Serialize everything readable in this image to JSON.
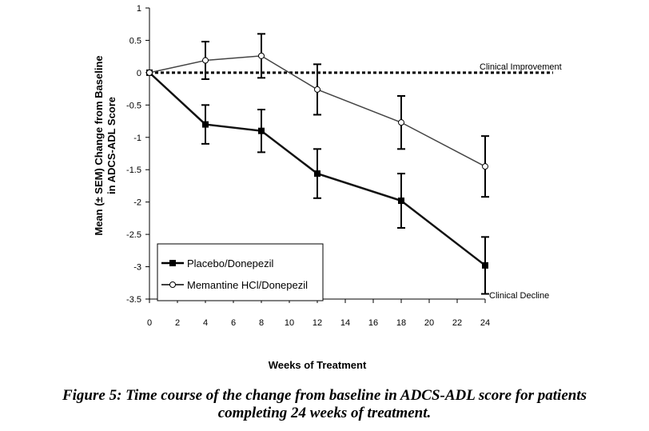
{
  "chart_data": {
    "type": "line",
    "xlabel": "Weeks of Treatment",
    "ylabel_line1": "Mean (± SEM) Change from Baseline",
    "ylabel_line2": "in ADCS-ADL Score",
    "xlim": [
      0,
      24
    ],
    "ylim": [
      -3.5,
      1
    ],
    "x_ticks": [
      0,
      2,
      4,
      6,
      8,
      10,
      12,
      14,
      16,
      18,
      20,
      22,
      24
    ],
    "y_ticks": [
      1,
      0.5,
      0,
      -0.5,
      -1,
      -1.5,
      -2,
      -2.5,
      -3,
      -3.5
    ],
    "x_tick_labels": [
      "0",
      "2",
      "4",
      "6",
      "8",
      "10",
      "12",
      "14",
      "16",
      "18",
      "20",
      "22",
      "24"
    ],
    "y_tick_labels": [
      "1",
      "0.5",
      "0",
      "-0.5",
      "-1",
      "-1.5",
      "-2",
      "-2.5",
      "-3",
      "-3.5"
    ],
    "grid": false,
    "legend_position": "bottom-left",
    "reference_line": {
      "y": 0,
      "style": "dotted",
      "label": "Clinical Improvement"
    },
    "annotations": [
      {
        "text": "Clinical Improvement",
        "x": 24,
        "y": 0.05
      },
      {
        "text": "Clinical Decline",
        "x": 24,
        "y": -3.45
      }
    ],
    "series": [
      {
        "name": "Placebo/Donepezil",
        "marker": "filled-square",
        "x": [
          0,
          4,
          8,
          12,
          18,
          24
        ],
        "y": [
          0,
          -0.8,
          -0.9,
          -1.56,
          -1.98,
          -2.98
        ],
        "err": [
          0,
          0.3,
          0.33,
          0.38,
          0.42,
          0.44
        ]
      },
      {
        "name": "Memantine HCl/Donepezil",
        "marker": "open-circle",
        "x": [
          0,
          4,
          8,
          12,
          18,
          24
        ],
        "y": [
          0,
          0.19,
          0.26,
          -0.26,
          -0.77,
          -1.45
        ],
        "err": [
          0,
          0.29,
          0.34,
          0.39,
          0.41,
          0.47
        ]
      }
    ]
  },
  "caption": {
    "line1": "Figure 5: Time course of the change from baseline in ADCS-ADL score for patients",
    "line2": "completing 24 weeks of treatment."
  },
  "colors": {
    "axis": "#000000",
    "series_placebo": "#111111",
    "series_memantine": "#444444"
  }
}
